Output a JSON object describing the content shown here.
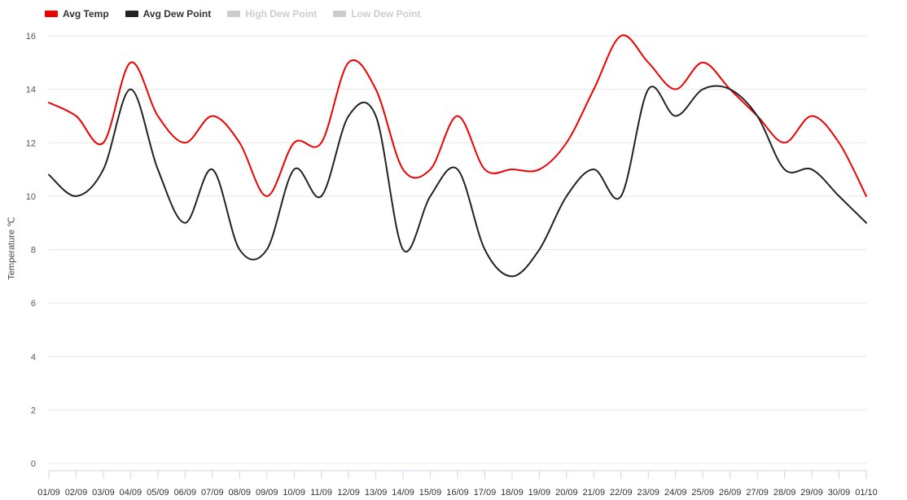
{
  "legend": {
    "items": [
      {
        "label": "Avg Temp",
        "color": "#ee0000",
        "visible": true
      },
      {
        "label": "Avg Dew Point",
        "color": "#222222",
        "visible": true
      },
      {
        "label": "High Dew Point",
        "color": "#cccccc",
        "visible": false
      },
      {
        "label": "Low Dew Point",
        "color": "#cccccc",
        "visible": false
      }
    ]
  },
  "chart_data": {
    "type": "line",
    "title": "",
    "xlabel": "",
    "ylabel": "Temperature ℃",
    "ylim": [
      0,
      16
    ],
    "yticks": [
      0,
      2,
      4,
      6,
      8,
      10,
      12,
      14,
      16
    ],
    "grid": true,
    "legend_position": "top-left",
    "x_tick_labels": [
      "01/09",
      "02/09",
      "03/09",
      "04/09",
      "05/09",
      "06/09",
      "07/09",
      "08/09",
      "09/09",
      "10/09",
      "11/09",
      "12/09",
      "13/09",
      "14/09",
      "15/09",
      "16/09",
      "17/09",
      "18/09",
      "19/09",
      "20/09",
      "21/09",
      "22/09",
      "23/09",
      "24/09",
      "25/09",
      "26/09",
      "27/09",
      "28/09",
      "29/09",
      "30/09",
      "01/10"
    ],
    "series": [
      {
        "name": "Avg Temp",
        "color": "#ee0000",
        "values": [
          13.5,
          13,
          12,
          15,
          13,
          12,
          13,
          12,
          10,
          12,
          12,
          15,
          14,
          11,
          11,
          13,
          11,
          11,
          11,
          12,
          14,
          16,
          15,
          14,
          15,
          14,
          13,
          12,
          13,
          12,
          10
        ]
      },
      {
        "name": "Avg Dew Point",
        "color": "#222222",
        "values": [
          10.8,
          10,
          11,
          14,
          11,
          9,
          11,
          8,
          8,
          11,
          10,
          13,
          13,
          8,
          10,
          11,
          8,
          7,
          8,
          10,
          11,
          10,
          14,
          13,
          14,
          14,
          13,
          11,
          11,
          10,
          9
        ]
      }
    ]
  }
}
